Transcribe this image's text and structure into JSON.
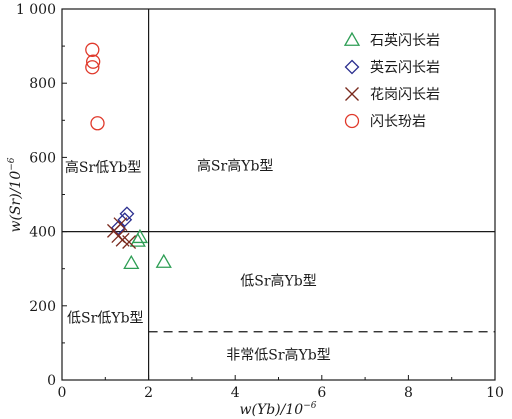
{
  "chart_data": {
    "type": "scatter",
    "xlabel": "w(Yb)/10",
    "xlabel_sup": "−6",
    "ylabel": "w(Sr)/10",
    "ylabel_sup": "−6",
    "xlim": [
      0,
      10
    ],
    "ylim": [
      0,
      1000
    ],
    "x_ticks": [
      0,
      2,
      4,
      6,
      8,
      10
    ],
    "y_ticks": [
      0,
      200,
      400,
      600,
      800,
      1000
    ],
    "y_tick_labels": [
      "0",
      "200",
      "400",
      "600",
      "800",
      "1 000"
    ],
    "grid": false,
    "legend_position": "top-right",
    "boundaries": {
      "vertical_x": 2,
      "horizontal_y": 400,
      "dashed_y": 130
    },
    "region_labels": [
      {
        "text": "高Sr低Yb型",
        "x": 0.95,
        "y": 560
      },
      {
        "text": "高Sr高Yb型",
        "x": 4.0,
        "y": 565
      },
      {
        "text": "低Sr高Yb型",
        "x": 5.0,
        "y": 255
      },
      {
        "text": "低Sr低Yb型",
        "x": 1.0,
        "y": 155
      },
      {
        "text": "非常低Sr高Yb型",
        "x": 5.0,
        "y": 55
      }
    ],
    "series": [
      {
        "name": "石英闪长岩",
        "marker": "triangle",
        "color": "#2e9e55",
        "points": [
          [
            1.6,
            315
          ],
          [
            1.75,
            375
          ],
          [
            1.8,
            385
          ],
          [
            2.35,
            318
          ]
        ]
      },
      {
        "name": "英云闪长岩",
        "marker": "diamond",
        "color": "#2b2f8f",
        "points": [
          [
            1.3,
            410
          ],
          [
            1.45,
            432
          ],
          [
            1.5,
            448
          ]
        ]
      },
      {
        "name": "花岗闪长岩",
        "marker": "x",
        "color": "#7a2a1e",
        "points": [
          [
            1.2,
            402
          ],
          [
            1.3,
            388
          ],
          [
            1.35,
            420
          ],
          [
            1.4,
            378
          ],
          [
            1.55,
            372
          ]
        ]
      },
      {
        "name": "闪长玢岩",
        "marker": "circle",
        "color": "#e0392b",
        "points": [
          [
            0.7,
            890
          ],
          [
            0.72,
            858
          ],
          [
            0.7,
            843
          ],
          [
            0.82,
            692
          ]
        ]
      }
    ]
  }
}
